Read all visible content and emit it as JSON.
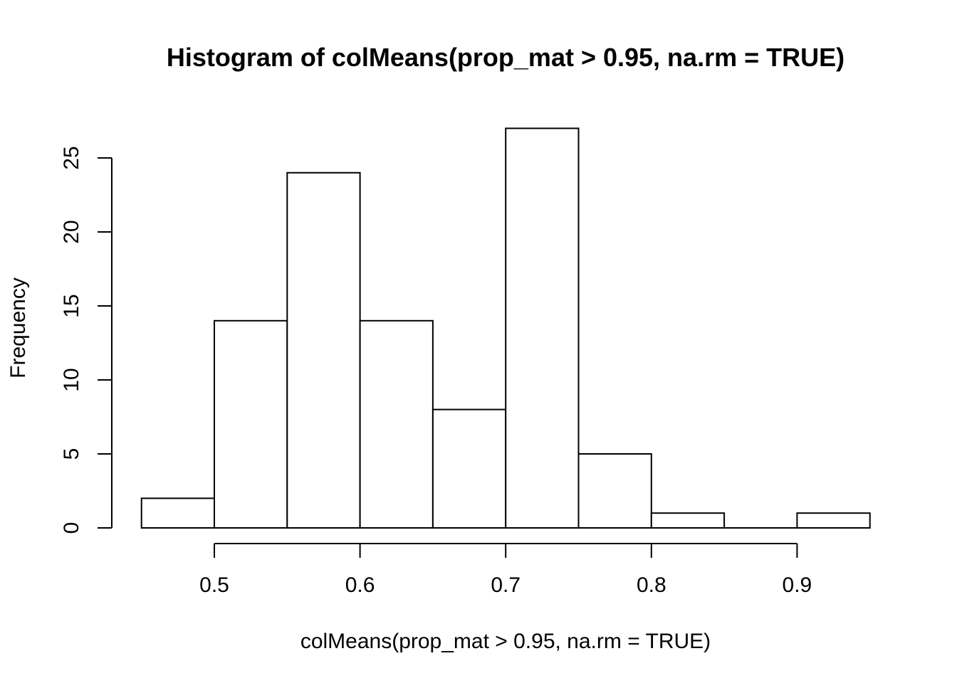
{
  "chart_data": {
    "type": "bar",
    "title": "Histogram of colMeans(prop_mat > 0.95, na.rm = TRUE)",
    "xlabel": "colMeans(prop_mat > 0.95, na.rm = TRUE)",
    "ylabel": "Frequency",
    "bins": [
      {
        "start": 0.45,
        "end": 0.5,
        "count": 2
      },
      {
        "start": 0.5,
        "end": 0.55,
        "count": 14
      },
      {
        "start": 0.55,
        "end": 0.6,
        "count": 24
      },
      {
        "start": 0.6,
        "end": 0.65,
        "count": 14
      },
      {
        "start": 0.65,
        "end": 0.7,
        "count": 8
      },
      {
        "start": 0.7,
        "end": 0.75,
        "count": 27
      },
      {
        "start": 0.75,
        "end": 0.8,
        "count": 5
      },
      {
        "start": 0.8,
        "end": 0.85,
        "count": 1
      },
      {
        "start": 0.85,
        "end": 0.9,
        "count": 0
      },
      {
        "start": 0.9,
        "end": 0.95,
        "count": 1
      }
    ],
    "xlim": [
      0.45,
      0.95
    ],
    "ylim": [
      0,
      27
    ],
    "x_ticks": [
      0.5,
      0.6,
      0.7,
      0.8,
      0.9
    ],
    "x_tick_labels": [
      "0.5",
      "0.6",
      "0.7",
      "0.8",
      "0.9"
    ],
    "y_ticks": [
      0,
      5,
      10,
      15,
      20,
      25
    ],
    "y_tick_labels": [
      "0",
      "5",
      "10",
      "15",
      "20",
      "25"
    ],
    "grid": false,
    "legend": "none"
  }
}
